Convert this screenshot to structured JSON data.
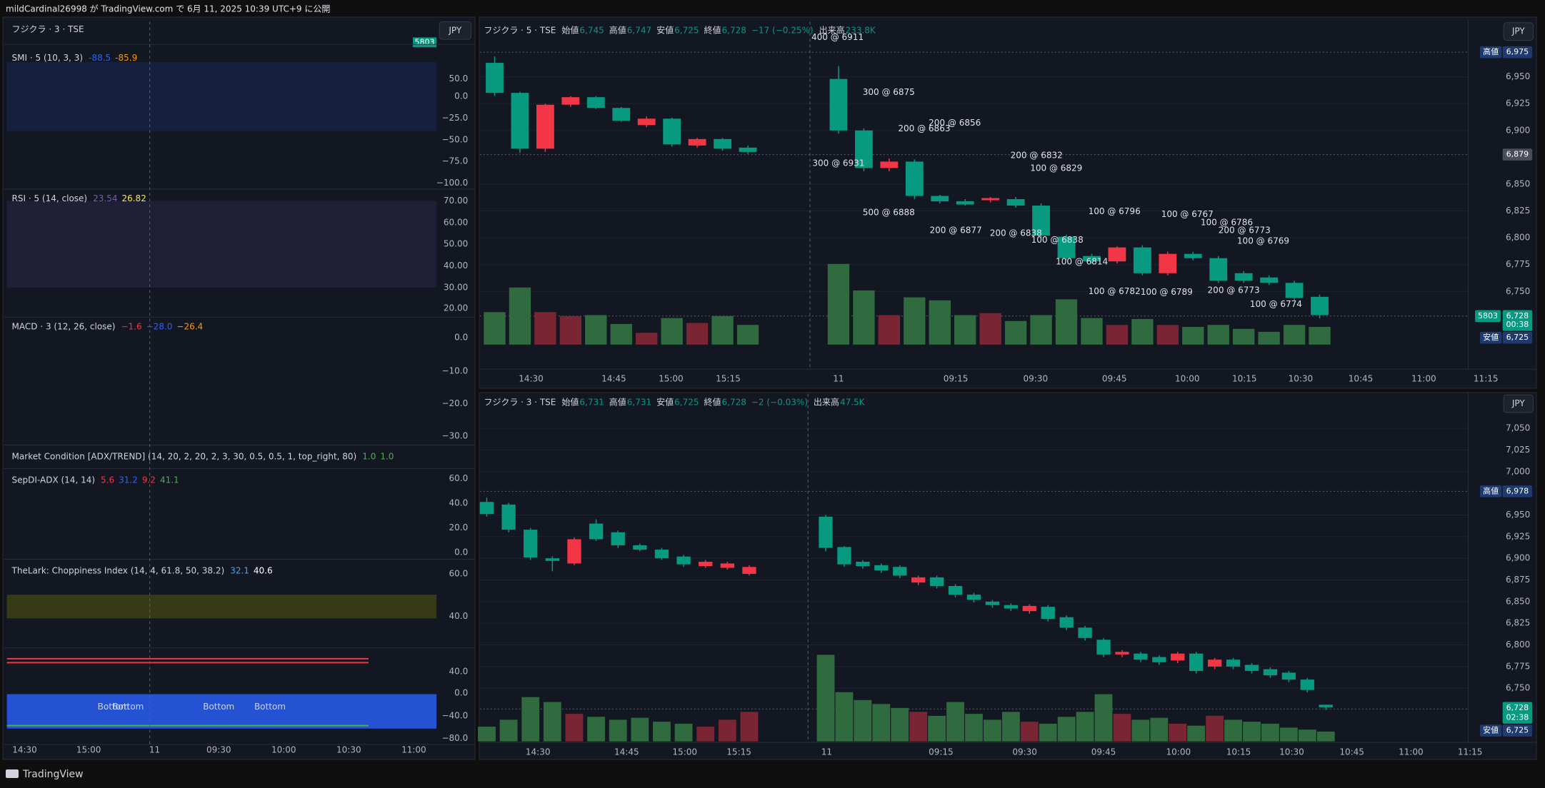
{
  "header": {
    "text": "mildCardinal26998 が TradingView.com で 6月 11, 2025 10:39 UTC+9 に公開"
  },
  "footer": {
    "brand": "TradingView"
  },
  "left_panel": {
    "legend": "フジクラ · 3 · TSE",
    "symbol_badge": "5803",
    "currency": "JPY",
    "indicators": [
      {
        "title": "SMI · 5 (10, 3, 3)",
        "values": [
          {
            "text": "-88.5",
            "color": "#2962ff"
          },
          {
            "text": "-85.9",
            "color": "#ff9800"
          }
        ],
        "ticks": [
          "50.0",
          "0.0",
          "−25.0",
          "−50.0",
          "−75.0",
          "−100.0"
        ]
      },
      {
        "title": "RSI · 5 (14, close)",
        "values": [
          {
            "text": "23.54",
            "color": "#7e57c2"
          },
          {
            "text": "26.82",
            "color": "#ffeb3b"
          }
        ],
        "ticks": [
          "70.00",
          "60.00",
          "50.00",
          "40.00",
          "30.00",
          "20.00"
        ]
      },
      {
        "title": "MACD · 3 (12, 26, close)",
        "values": [
          {
            "text": "−1.6",
            "color": "#f23645"
          },
          {
            "text": "−28.0",
            "color": "#2962ff"
          },
          {
            "text": "−26.4",
            "color": "#ff9800"
          }
        ],
        "ticks": [
          "0.0",
          "−10.0",
          "−20.0",
          "−30.0"
        ]
      },
      {
        "title": "Market Condition [ADX/TREND] (14, 20, 2, 20, 2, 3, 30, 0.5, 0.5, 1, top_right, 80)",
        "values": [
          {
            "text": "1.0",
            "color": "#4caf50"
          },
          {
            "text": "1.0",
            "color": "#4caf50"
          }
        ],
        "ticks": []
      },
      {
        "title": "SepDI-ADX (14, 14)",
        "values": [
          {
            "text": "5.6",
            "color": "#f23645"
          },
          {
            "text": "31.2",
            "color": "#2962ff"
          },
          {
            "text": "9.2",
            "color": "#f23645"
          },
          {
            "text": "41.1",
            "color": "#4caf50"
          }
        ],
        "ticks": [
          "60.0",
          "40.0",
          "20.0",
          "0.0"
        ]
      },
      {
        "title": "TheLark: Choppiness Index (14, 4, 61.8, 50, 38.2)",
        "values": [
          {
            "text": "32.1",
            "color": "#42a5f5"
          },
          {
            "text": "40.6",
            "color": "#ffffff"
          }
        ],
        "ticks": [
          "60.0",
          "40.0"
        ]
      },
      {
        "title": null,
        "values": [],
        "ticks": [
          "40.0",
          "0.0",
          "−40.0",
          "−80.0"
        ]
      }
    ],
    "bottom_labels": [
      "Bottom",
      "Bottom",
      "Bottom",
      "Bottom"
    ],
    "time_labels": [
      "14:30",
      "15:00",
      "11",
      "09:30",
      "10:00",
      "10:30",
      "11:00"
    ]
  },
  "top_chart": {
    "legend": "フジクラ · 5 · TSE",
    "ohlc_text": [
      {
        "k": "始値",
        "v": "6,745"
      },
      {
        "k": "高値",
        "v": "6,747"
      },
      {
        "k": "安値",
        "v": "6,725"
      },
      {
        "k": "終値",
        "v": "6,728"
      }
    ],
    "change": "−17 (−0.25%)",
    "volume_label": "出来高",
    "volume_text": "233.8K",
    "currency": "JPY",
    "badges": {
      "high_tag": "高値",
      "high": "6,975",
      "prev": "6,879",
      "symbol": "5803",
      "last": "6,728",
      "timer": "00:38",
      "low_tag": "安値",
      "low": "6,725"
    },
    "yticks": [
      {
        "value": 6950,
        "label": "6,950"
      },
      {
        "value": 6925,
        "label": "6,925"
      },
      {
        "value": 6900,
        "label": "6,900"
      },
      {
        "value": 6850,
        "label": "6,850"
      },
      {
        "value": 6825,
        "label": "6,825"
      },
      {
        "value": 6800,
        "label": "6,800"
      },
      {
        "value": 6775,
        "label": "6,775"
      },
      {
        "value": 6750,
        "label": "6,750"
      }
    ],
    "time_labels": [
      "14:30",
      "14:45",
      "15:00",
      "15:15",
      "11",
      "09:15",
      "09:30",
      "09:45",
      "10:00",
      "10:15",
      "10:30",
      "10:45",
      "11:00",
      "11:15"
    ],
    "annotations": [
      "400 @ 6911",
      "300 @ 6875",
      "300 @ 6931",
      "200 @ 6863",
      "200 @ 6856",
      "500 @ 6888",
      "200 @ 6877",
      "200 @ 6832",
      "100 @ 6829",
      "200 @ 6838",
      "100 @ 6838",
      "100 @ 6796",
      "100 @ 6767",
      "100 @ 6786",
      "200 @ 6773",
      "100 @ 6769",
      "100 @ 6814",
      "100 @ 6782",
      "100 @ 6789",
      "200 @ 6773",
      "100 @ 6774"
    ],
    "candles": [
      {
        "o": 6935,
        "h": 6969,
        "l": 6932,
        "c": 6963,
        "color": "#089981"
      },
      {
        "o": 6883,
        "h": 6936,
        "l": 6879,
        "c": 6935,
        "color": "#089981"
      },
      {
        "o": 6924,
        "h": 6925,
        "l": 6880,
        "c": 6883,
        "color": "#f23645"
      },
      {
        "o": 6931,
        "h": 6932,
        "l": 6922,
        "c": 6924,
        "color": "#f23645"
      },
      {
        "o": 6921,
        "h": 6932,
        "l": 6920,
        "c": 6931,
        "color": "#089981"
      },
      {
        "o": 6909,
        "h": 6922,
        "l": 6908,
        "c": 6921,
        "color": "#089981"
      },
      {
        "o": 6911,
        "h": 6913,
        "l": 6903,
        "c": 6905,
        "color": "#f23645"
      },
      {
        "o": 6887,
        "h": 6912,
        "l": 6885,
        "c": 6911,
        "color": "#089981"
      },
      {
        "o": 6892,
        "h": 6893,
        "l": 6884,
        "c": 6886,
        "color": "#f23645"
      },
      {
        "o": 6883,
        "h": 6893,
        "l": 6881,
        "c": 6892,
        "color": "#089981"
      },
      {
        "o": 6880,
        "h": 6886,
        "l": 6878,
        "c": 6884,
        "color": "#089981"
      },
      {
        "o": 6900,
        "h": 6960,
        "l": 6897,
        "c": 6948,
        "color": "#089981"
      },
      {
        "o": 6865,
        "h": 6902,
        "l": 6862,
        "c": 6900,
        "color": "#089981"
      },
      {
        "o": 6871,
        "h": 6874,
        "l": 6862,
        "c": 6865,
        "color": "#f23645"
      },
      {
        "o": 6839,
        "h": 6873,
        "l": 6836,
        "c": 6871,
        "color": "#089981"
      },
      {
        "o": 6834,
        "h": 6840,
        "l": 6832,
        "c": 6839,
        "color": "#089981"
      },
      {
        "o": 6831,
        "h": 6836,
        "l": 6830,
        "c": 6834,
        "color": "#089981"
      },
      {
        "o": 6837,
        "h": 6838,
        "l": 6833,
        "c": 6835,
        "color": "#f23645"
      },
      {
        "o": 6830,
        "h": 6838,
        "l": 6828,
        "c": 6836,
        "color": "#089981"
      },
      {
        "o": 6802,
        "h": 6832,
        "l": 6800,
        "c": 6830,
        "color": "#089981"
      },
      {
        "o": 6781,
        "h": 6803,
        "l": 6779,
        "c": 6801,
        "color": "#089981"
      },
      {
        "o": 6778,
        "h": 6785,
        "l": 6776,
        "c": 6783,
        "color": "#089981"
      },
      {
        "o": 6791,
        "h": 6792,
        "l": 6776,
        "c": 6778,
        "color": "#f23645"
      },
      {
        "o": 6767,
        "h": 6793,
        "l": 6765,
        "c": 6791,
        "color": "#089981"
      },
      {
        "o": 6785,
        "h": 6787,
        "l": 6765,
        "c": 6767,
        "color": "#f23645"
      },
      {
        "o": 6781,
        "h": 6787,
        "l": 6779,
        "c": 6785,
        "color": "#089981"
      },
      {
        "o": 6760,
        "h": 6783,
        "l": 6758,
        "c": 6781,
        "color": "#089981"
      },
      {
        "o": 6760,
        "h": 6769,
        "l": 6758,
        "c": 6767,
        "color": "#089981"
      },
      {
        "o": 6758,
        "h": 6765,
        "l": 6756,
        "c": 6763,
        "color": "#089981"
      },
      {
        "o": 6744,
        "h": 6760,
        "l": 6742,
        "c": 6758,
        "color": "#089981"
      },
      {
        "o": 6745,
        "h": 6747,
        "l": 6725,
        "c": 6728,
        "color": "#089981"
      }
    ],
    "volumes": [
      33,
      58,
      33,
      29,
      30,
      21,
      12,
      27,
      22,
      29,
      20,
      82,
      55,
      30,
      48,
      45,
      30,
      32,
      24,
      30,
      46,
      27,
      20,
      26,
      20,
      18,
      20,
      16,
      13,
      20,
      18
    ]
  },
  "bottom_chart": {
    "legend": "フジクラ · 3 · TSE",
    "ohlc_text": [
      {
        "k": "始値",
        "v": "6,731"
      },
      {
        "k": "高値",
        "v": "6,731"
      },
      {
        "k": "安値",
        "v": "6,725"
      },
      {
        "k": "終値",
        "v": "6,728"
      }
    ],
    "change": "−2 (−0.03%)",
    "volume_label": "出来高",
    "volume_text": "47.5K",
    "currency": "JPY",
    "badges": {
      "high_tag": "高値",
      "high": "6,978",
      "last": "6,728",
      "timer": "02:38",
      "low_tag": "安値",
      "low": "6,725"
    },
    "yticks": [
      {
        "value": 7050,
        "label": "7,050"
      },
      {
        "value": 7025,
        "label": "7,025"
      },
      {
        "value": 7000,
        "label": "7,000"
      },
      {
        "value": 6950,
        "label": "6,950"
      },
      {
        "value": 6925,
        "label": "6,925"
      },
      {
        "value": 6900,
        "label": "6,900"
      },
      {
        "value": 6875,
        "label": "6,875"
      },
      {
        "value": 6850,
        "label": "6,850"
      },
      {
        "value": 6825,
        "label": "6,825"
      },
      {
        "value": 6800,
        "label": "6,800"
      },
      {
        "value": 6775,
        "label": "6,775"
      },
      {
        "value": 6750,
        "label": "6,750"
      }
    ],
    "time_labels": [
      "14:30",
      "14:45",
      "15:00",
      "15:15",
      "11",
      "09:15",
      "09:30",
      "09:45",
      "10:00",
      "10:15",
      "10:30",
      "10:45",
      "11:00",
      "11:15"
    ],
    "candles": [
      {
        "o": 6951,
        "h": 6970,
        "l": 6948,
        "c": 6965,
        "color": "#089981"
      },
      {
        "o": 6933,
        "h": 6964,
        "l": 6930,
        "c": 6962,
        "color": "#089981"
      },
      {
        "o": 6901,
        "h": 6935,
        "l": 6898,
        "c": 6933,
        "color": "#089981"
      },
      {
        "o": 6897,
        "h": 6902,
        "l": 6885,
        "c": 6900,
        "color": "#089981"
      },
      {
        "o": 6922,
        "h": 6924,
        "l": 6892,
        "c": 6894,
        "color": "#f23645"
      },
      {
        "o": 6922,
        "h": 6945,
        "l": 6920,
        "c": 6940,
        "color": "#089981"
      },
      {
        "o": 6915,
        "h": 6932,
        "l": 6912,
        "c": 6930,
        "color": "#089981"
      },
      {
        "o": 6910,
        "h": 6917,
        "l": 6908,
        "c": 6915,
        "color": "#089981"
      },
      {
        "o": 6900,
        "h": 6912,
        "l": 6898,
        "c": 6910,
        "color": "#089981"
      },
      {
        "o": 6893,
        "h": 6904,
        "l": 6890,
        "c": 6902,
        "color": "#089981"
      },
      {
        "o": 6896,
        "h": 6898,
        "l": 6889,
        "c": 6891,
        "color": "#f23645"
      },
      {
        "o": 6894,
        "h": 6896,
        "l": 6887,
        "c": 6889,
        "color": "#f23645"
      },
      {
        "o": 6890,
        "h": 6892,
        "l": 6880,
        "c": 6882,
        "color": "#f23645"
      },
      {
        "o": 6912,
        "h": 6950,
        "l": 6908,
        "c": 6948,
        "color": "#089981"
      },
      {
        "o": 6893,
        "h": 6914,
        "l": 6890,
        "c": 6913,
        "color": "#089981"
      },
      {
        "o": 6891,
        "h": 6898,
        "l": 6888,
        "c": 6896,
        "color": "#089981"
      },
      {
        "o": 6886,
        "h": 6894,
        "l": 6883,
        "c": 6892,
        "color": "#089981"
      },
      {
        "o": 6880,
        "h": 6892,
        "l": 6877,
        "c": 6890,
        "color": "#089981"
      },
      {
        "o": 6878,
        "h": 6880,
        "l": 6869,
        "c": 6872,
        "color": "#f23645"
      },
      {
        "o": 6868,
        "h": 6880,
        "l": 6865,
        "c": 6878,
        "color": "#089981"
      },
      {
        "o": 6858,
        "h": 6870,
        "l": 6855,
        "c": 6868,
        "color": "#089981"
      },
      {
        "o": 6852,
        "h": 6860,
        "l": 6849,
        "c": 6858,
        "color": "#089981"
      },
      {
        "o": 6846,
        "h": 6852,
        "l": 6843,
        "c": 6850,
        "color": "#089981"
      },
      {
        "o": 6842,
        "h": 6848,
        "l": 6839,
        "c": 6846,
        "color": "#089981"
      },
      {
        "o": 6845,
        "h": 6847,
        "l": 6836,
        "c": 6839,
        "color": "#f23645"
      },
      {
        "o": 6830,
        "h": 6846,
        "l": 6827,
        "c": 6844,
        "color": "#089981"
      },
      {
        "o": 6820,
        "h": 6834,
        "l": 6817,
        "c": 6832,
        "color": "#089981"
      },
      {
        "o": 6808,
        "h": 6822,
        "l": 6805,
        "c": 6820,
        "color": "#089981"
      },
      {
        "o": 6789,
        "h": 6808,
        "l": 6786,
        "c": 6806,
        "color": "#089981"
      },
      {
        "o": 6792,
        "h": 6794,
        "l": 6786,
        "c": 6789,
        "color": "#f23645"
      },
      {
        "o": 6783,
        "h": 6792,
        "l": 6780,
        "c": 6790,
        "color": "#089981"
      },
      {
        "o": 6780,
        "h": 6788,
        "l": 6777,
        "c": 6786,
        "color": "#089981"
      },
      {
        "o": 6790,
        "h": 6792,
        "l": 6779,
        "c": 6782,
        "color": "#f23645"
      },
      {
        "o": 6770,
        "h": 6792,
        "l": 6767,
        "c": 6790,
        "color": "#089981"
      },
      {
        "o": 6783,
        "h": 6785,
        "l": 6772,
        "c": 6775,
        "color": "#f23645"
      },
      {
        "o": 6775,
        "h": 6785,
        "l": 6772,
        "c": 6783,
        "color": "#089981"
      },
      {
        "o": 6770,
        "h": 6779,
        "l": 6767,
        "c": 6777,
        "color": "#089981"
      },
      {
        "o": 6765,
        "h": 6774,
        "l": 6762,
        "c": 6772,
        "color": "#089981"
      },
      {
        "o": 6760,
        "h": 6770,
        "l": 6757,
        "c": 6768,
        "color": "#089981"
      },
      {
        "o": 6748,
        "h": 6762,
        "l": 6745,
        "c": 6760,
        "color": "#089981"
      },
      {
        "o": 6731,
        "h": 6731,
        "l": 6725,
        "c": 6728,
        "color": "#089981"
      }
    ],
    "volumes": [
      15,
      22,
      45,
      40,
      28,
      25,
      22,
      24,
      20,
      18,
      15,
      22,
      30,
      88,
      50,
      42,
      38,
      34,
      30,
      26,
      40,
      28,
      22,
      30,
      20,
      18,
      25,
      30,
      48,
      28,
      22,
      24,
      18,
      16,
      26,
      22,
      20,
      18,
      14,
      12,
      10
    ]
  }
}
